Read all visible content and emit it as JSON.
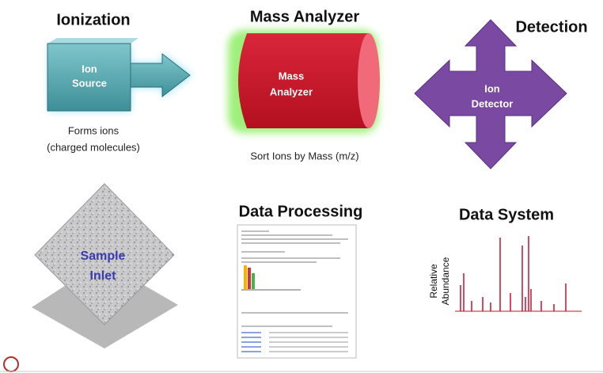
{
  "ionization": {
    "title": "Ionization",
    "box_label": [
      "Ion",
      "Source"
    ],
    "caption": [
      "Forms ions",
      "(charged molecules)"
    ]
  },
  "mass_analyzer": {
    "title": "Mass Analyzer",
    "box_label": [
      "Mass",
      "Analyzer"
    ],
    "caption": "Sort Ions by Mass (m/z)"
  },
  "detection": {
    "title": "Detection",
    "box_label": [
      "Ion",
      "Detector"
    ]
  },
  "sample_inlet": {
    "label": [
      "Sample",
      "Inlet"
    ]
  },
  "data_processing": {
    "title": "Data Processing"
  },
  "data_system": {
    "title": "Data System",
    "y_axis_label": [
      "Relative",
      "Abundance"
    ]
  }
}
